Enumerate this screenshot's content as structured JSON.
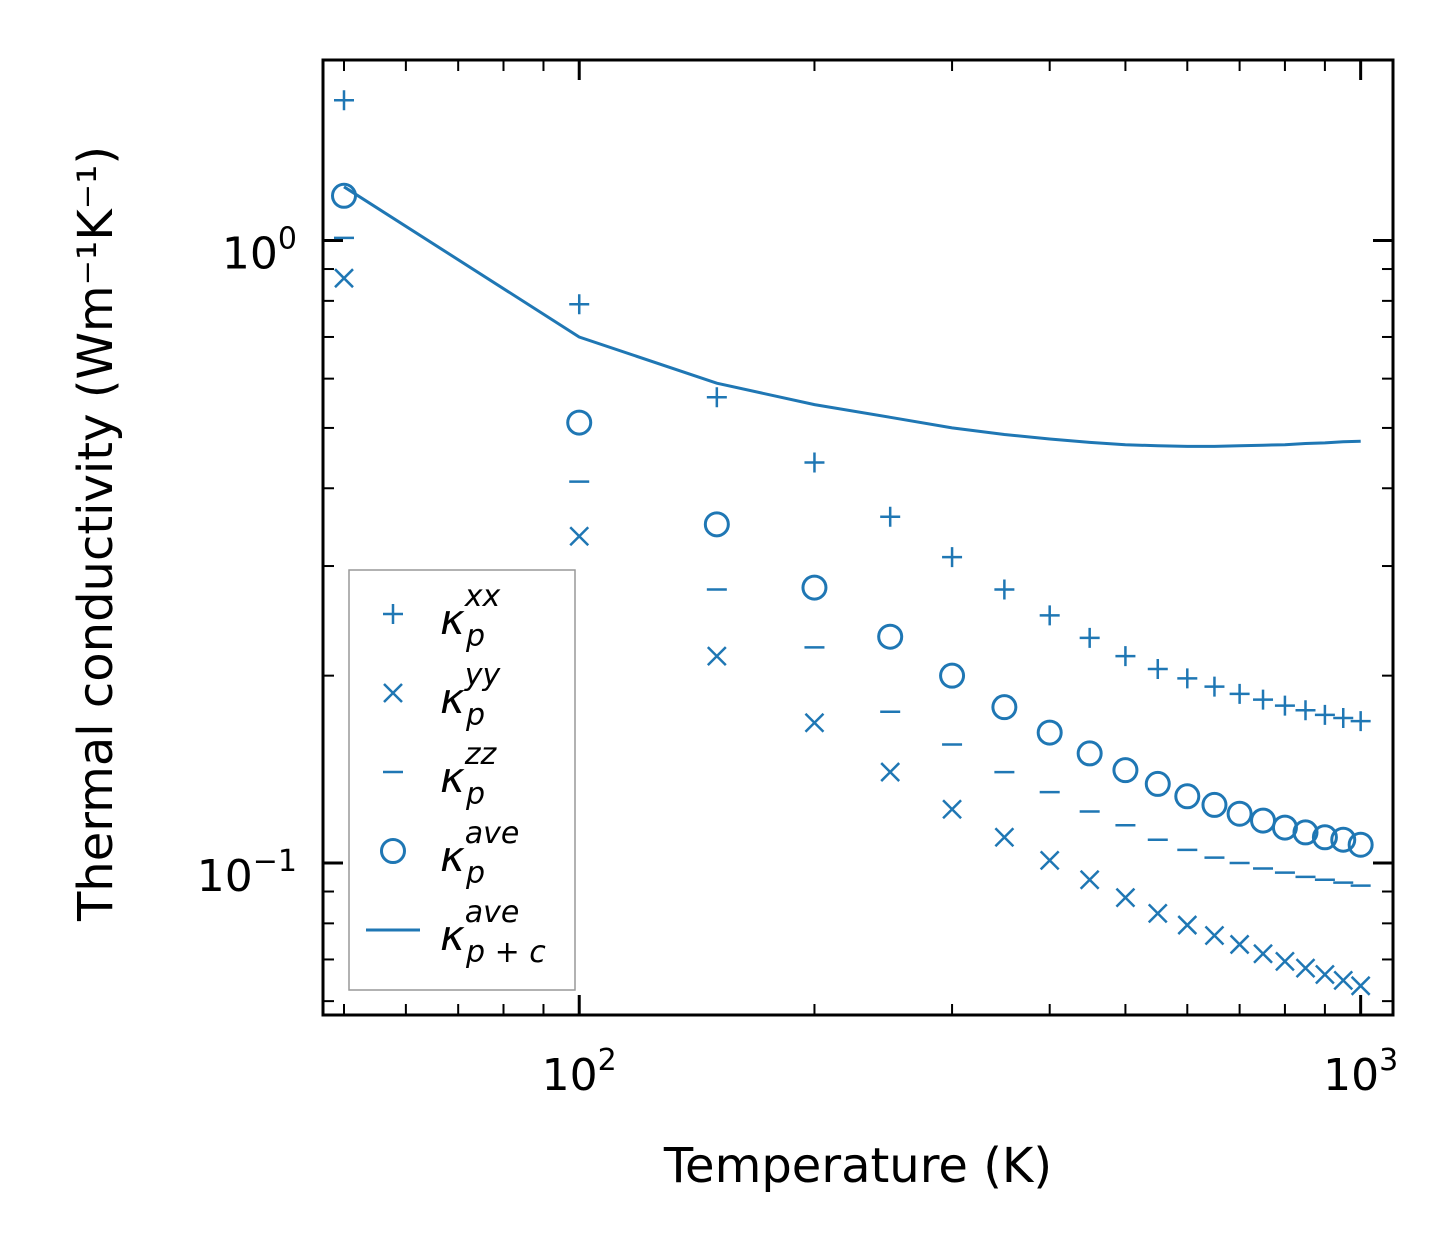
{
  "chart_data": {
    "type": "scatter",
    "xscale": "log",
    "yscale": "log",
    "xlabel": "Temperature (K)",
    "ylabel": "Thermal conductivity (Wm⁻¹K⁻¹)",
    "xlim": [
      47,
      1100
    ],
    "ylim": [
      0.057,
      1.95
    ],
    "x_ticks": [
      {
        "base": "10",
        "exp": "2",
        "value": 100
      },
      {
        "base": "10",
        "exp": "3",
        "value": 1000
      }
    ],
    "y_ticks": [
      {
        "base": "10",
        "exp": "−1",
        "value": 0.1
      },
      {
        "base": "10",
        "exp": "0",
        "value": 1
      }
    ],
    "legend_position": "lower-left",
    "x": [
      50,
      100,
      150,
      200,
      250,
      300,
      350,
      400,
      450,
      500,
      550,
      600,
      650,
      700,
      750,
      800,
      850,
      900,
      950,
      1000
    ],
    "series": [
      {
        "name": "kxx",
        "label": {
          "base": "κ",
          "sub": "p",
          "sup": "xx"
        },
        "style": "plus",
        "values": [
          1.68,
          0.79,
          0.56,
          0.44,
          0.36,
          0.31,
          0.275,
          0.25,
          0.23,
          0.215,
          0.205,
          0.198,
          0.192,
          0.187,
          0.183,
          0.179,
          0.176,
          0.173,
          0.171,
          0.169
        ]
      },
      {
        "name": "kyy",
        "label": {
          "base": "κ",
          "sub": "p",
          "sup": "yy"
        },
        "style": "x",
        "values": [
          0.87,
          0.335,
          0.215,
          0.168,
          0.14,
          0.122,
          0.11,
          0.101,
          0.094,
          0.088,
          0.083,
          0.0795,
          0.0765,
          0.074,
          0.0715,
          0.0695,
          0.0678,
          0.0662,
          0.0648,
          0.0635
        ]
      },
      {
        "name": "kzz",
        "label": {
          "base": "κ",
          "sub": "p",
          "sup": "zz"
        },
        "style": "dash",
        "values": [
          1.01,
          0.41,
          0.275,
          0.222,
          0.175,
          0.155,
          0.14,
          0.13,
          0.121,
          0.115,
          0.109,
          0.105,
          0.102,
          0.1,
          0.098,
          0.0965,
          0.095,
          0.094,
          0.093,
          0.092
        ]
      },
      {
        "name": "kave",
        "label": {
          "base": "κ",
          "sub": "p",
          "sup": "ave"
        },
        "style": "circle",
        "values": [
          1.18,
          0.51,
          0.35,
          0.277,
          0.231,
          0.2,
          0.178,
          0.162,
          0.15,
          0.141,
          0.134,
          0.128,
          0.124,
          0.12,
          0.117,
          0.114,
          0.112,
          0.11,
          0.109,
          0.107
        ]
      },
      {
        "name": "kave_pc",
        "label": {
          "base": "κ",
          "sub": "p + c",
          "sup": "ave"
        },
        "style": "line",
        "values": [
          1.22,
          0.7,
          0.59,
          0.545,
          0.52,
          0.5,
          0.488,
          0.48,
          0.474,
          0.47,
          0.468,
          0.467,
          0.467,
          0.468,
          0.469,
          0.47,
          0.472,
          0.473,
          0.475,
          0.476
        ]
      }
    ]
  },
  "colors": {
    "series": "#1f77b4",
    "axis": "#000000",
    "legend_border": "#999999"
  }
}
